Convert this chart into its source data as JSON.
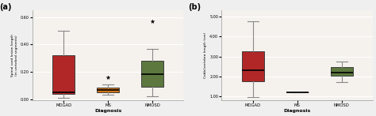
{
  "panel_a": {
    "label": "(a)",
    "groups": [
      "MOGAD",
      "MS",
      "NMOSD"
    ],
    "xlabel": "Diagnosis",
    "ylabel": "Spinal cord lesion length\n(in vertebral segments)",
    "ylim": [
      -0.01,
      0.65
    ],
    "yticks": [
      0.0,
      0.2,
      0.4,
      0.6
    ],
    "yticklabels": [
      "0.00",
      "0.20",
      "0.40",
      "0.60"
    ],
    "boxes": [
      {
        "group": "MOGAD",
        "color": "#AA1111",
        "q1": 0.04,
        "median": 0.05,
        "q3": 0.32,
        "whislo": 0.01,
        "whishi": 0.5,
        "fliers": []
      },
      {
        "group": "MS",
        "color": "#CC6600",
        "q1": 0.05,
        "median": 0.065,
        "q3": 0.085,
        "whislo": 0.035,
        "whishi": 0.11,
        "fliers": [
          0.16
        ]
      },
      {
        "group": "NMOSD",
        "color": "#4B6B2B",
        "q1": 0.09,
        "median": 0.18,
        "q3": 0.28,
        "whislo": 0.02,
        "whishi": 0.37,
        "fliers": [
          0.57
        ]
      }
    ]
  },
  "panel_b": {
    "label": "(b)",
    "groups": [
      "MOGAD",
      "MS",
      "NMOSD"
    ],
    "xlabel": "Diagnosis",
    "ylabel": "Cobb/vertebra length (cm)",
    "ylim": [
      0.8,
      5.3
    ],
    "yticks": [
      1.0,
      2.0,
      3.0,
      4.0,
      5.0
    ],
    "yticklabels": [
      "1.00",
      "2.00",
      "3.00",
      "4.00",
      "5.00"
    ],
    "boxes": [
      {
        "group": "MOGAD",
        "color": "#AA1111",
        "q1": 1.75,
        "median": 2.3,
        "q3": 3.25,
        "whislo": 0.95,
        "whishi": 4.75,
        "fliers": []
      },
      {
        "group": "MS",
        "color": "#CC6600",
        "q1": 1.22,
        "median": 1.22,
        "q3": 1.22,
        "whislo": 1.22,
        "whishi": 1.22,
        "fliers": []
      },
      {
        "group": "NMOSD",
        "color": "#4B6B2B",
        "q1": 2.05,
        "median": 2.2,
        "q3": 2.45,
        "whislo": 1.7,
        "whishi": 2.75,
        "fliers": []
      }
    ]
  },
  "bg_color": "#EFEFEF",
  "plot_bg_color": "#F5F2EE",
  "grid_color": "#FFFFFF",
  "fig_width": 4.74,
  "fig_height": 1.47
}
